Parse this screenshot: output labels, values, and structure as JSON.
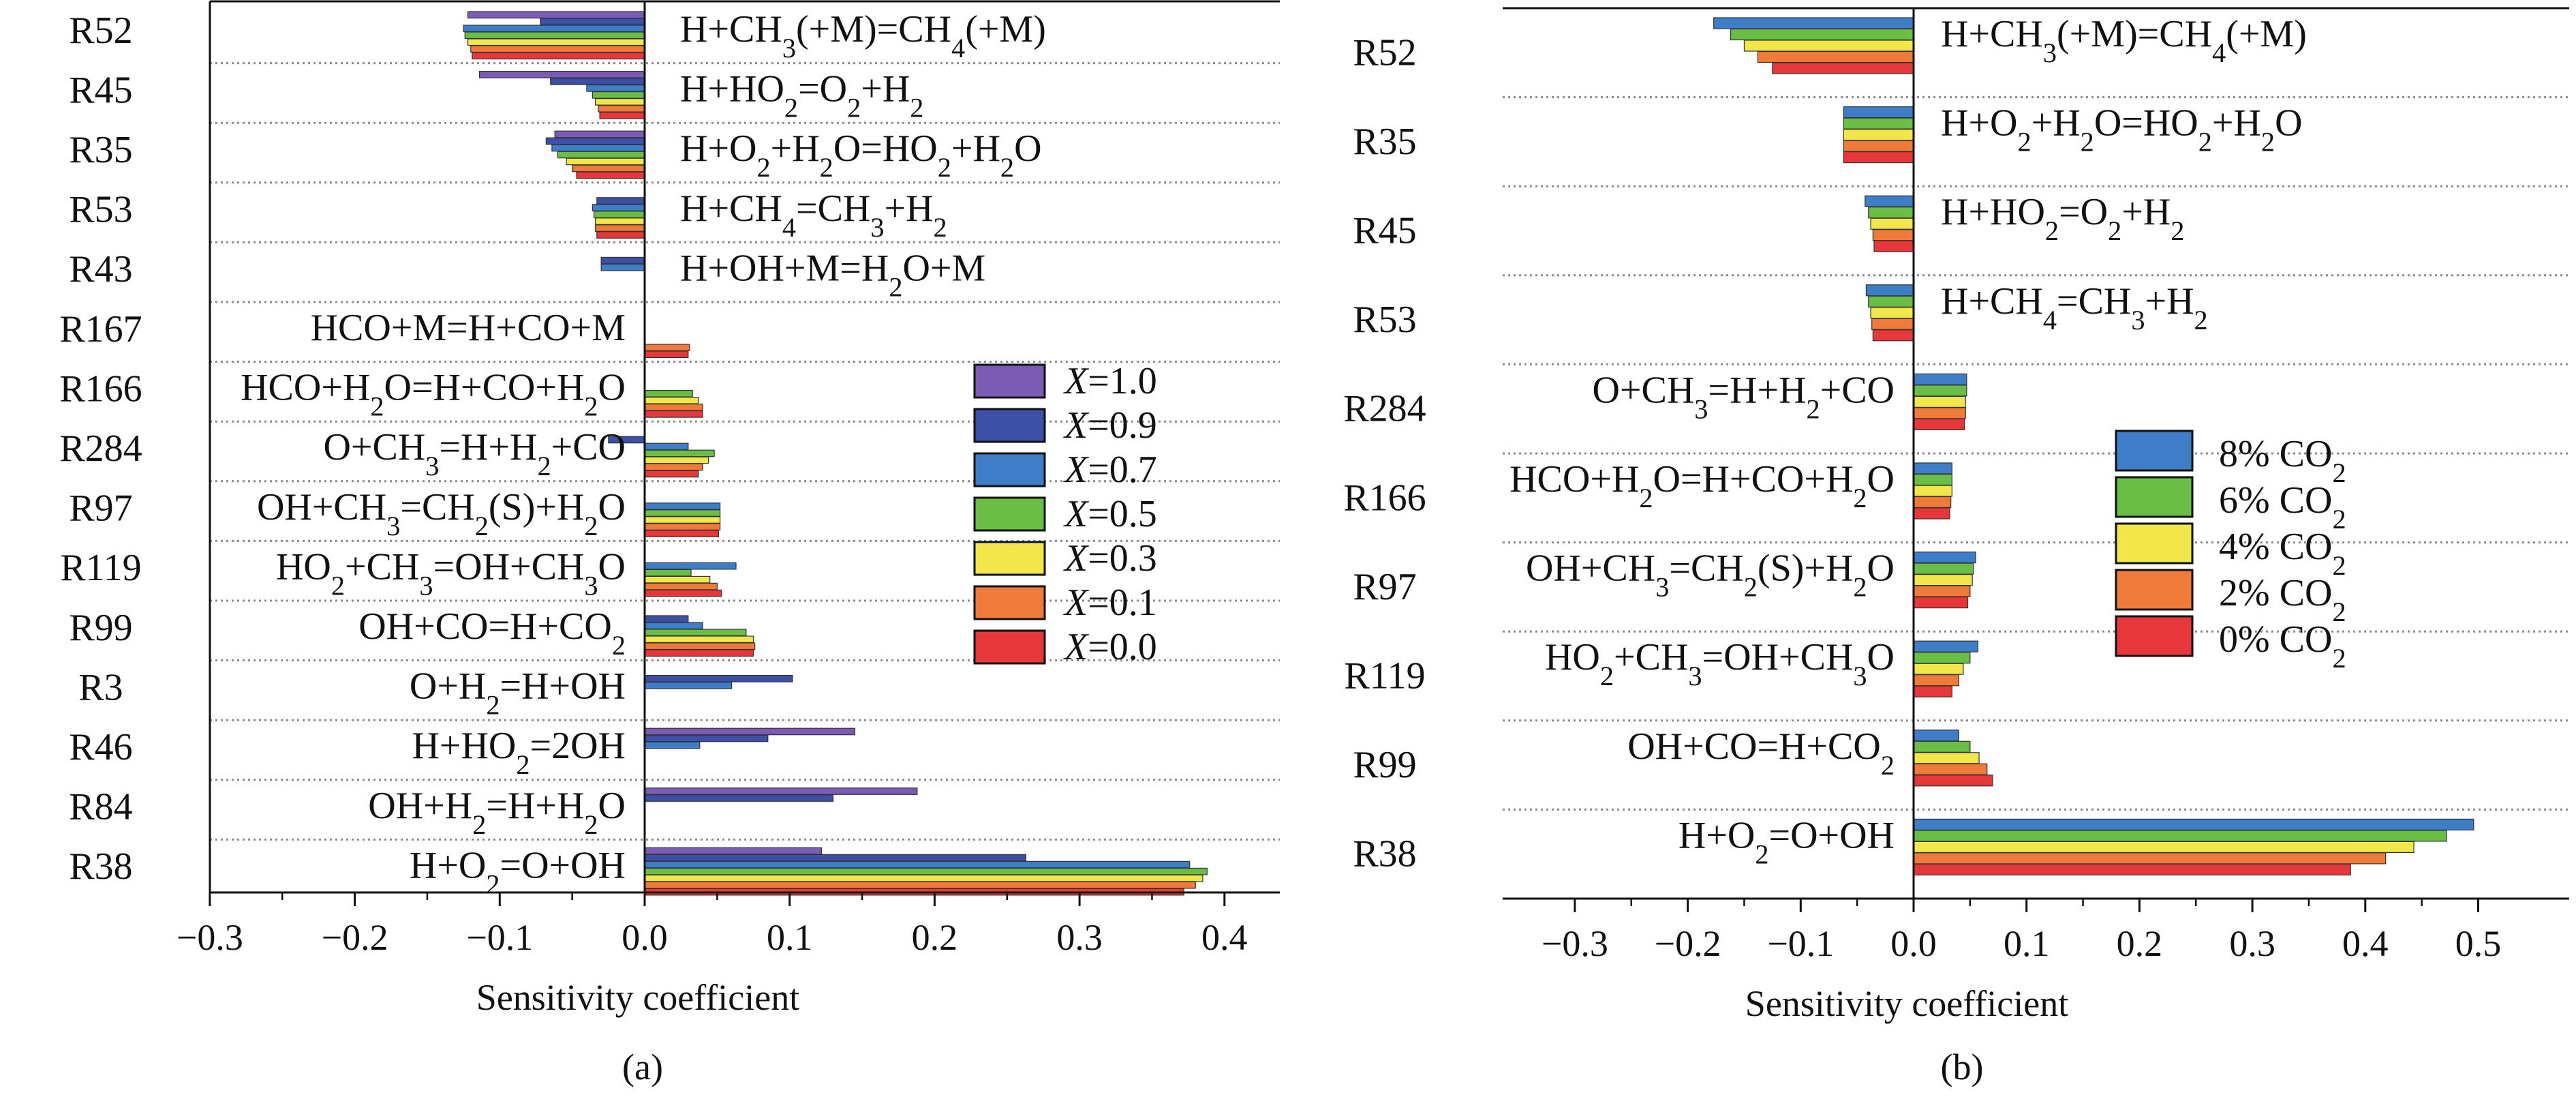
{
  "chart_data": [
    {
      "type": "bar",
      "orientation": "horizontal",
      "caption": "(a)",
      "xlabel": "Sensitivity coefficient",
      "ylabel": "",
      "xlim": [
        -0.3,
        0.44
      ],
      "xticks": [
        -0.3,
        -0.2,
        -0.1,
        0.0,
        0.1,
        0.2,
        0.3,
        0.4
      ],
      "xtick_labels": [
        "−0.3",
        "−0.2",
        "−0.1",
        "0.0",
        "0.1",
        "0.2",
        "0.3",
        "0.4"
      ],
      "grid": "dotted separators between reactions",
      "legend_position": "center-right",
      "categories": [
        "R52",
        "R45",
        "R35",
        "R53",
        "R43",
        "R167",
        "R166",
        "R284",
        "R97",
        "R119",
        "R99",
        "R3",
        "R46",
        "R84",
        "R38"
      ],
      "reactions": [
        [
          {
            "t": "H+CH"
          },
          {
            "t": "3",
            "s": "sub"
          },
          {
            "t": "(+M)=CH"
          },
          {
            "t": "4",
            "s": "sub"
          },
          {
            "t": "(+M)"
          }
        ],
        [
          {
            "t": "H+HO"
          },
          {
            "t": "2",
            "s": "sub"
          },
          {
            "t": "=O"
          },
          {
            "t": "2",
            "s": "sub"
          },
          {
            "t": "+H"
          },
          {
            "t": "2",
            "s": "sub"
          }
        ],
        [
          {
            "t": "H+O"
          },
          {
            "t": "2",
            "s": "sub"
          },
          {
            "t": "+H"
          },
          {
            "t": "2",
            "s": "sub"
          },
          {
            "t": "O=HO"
          },
          {
            "t": "2",
            "s": "sub"
          },
          {
            "t": "+H"
          },
          {
            "t": "2",
            "s": "sub"
          },
          {
            "t": "O"
          }
        ],
        [
          {
            "t": "H+CH"
          },
          {
            "t": "4",
            "s": "sub"
          },
          {
            "t": "=CH"
          },
          {
            "t": "3",
            "s": "sub"
          },
          {
            "t": "+H"
          },
          {
            "t": "2",
            "s": "sub"
          }
        ],
        [
          {
            "t": "H+OH+M=H"
          },
          {
            "t": "2",
            "s": "sub"
          },
          {
            "t": "O+M"
          }
        ],
        [
          {
            "t": "HCO+M=H+CO+M"
          }
        ],
        [
          {
            "t": "HCO+H"
          },
          {
            "t": "2",
            "s": "sub"
          },
          {
            "t": "O=H+CO+H"
          },
          {
            "t": "2",
            "s": "sub"
          },
          {
            "t": "O"
          }
        ],
        [
          {
            "t": "O+CH"
          },
          {
            "t": "3",
            "s": "sub"
          },
          {
            "t": "=H+H"
          },
          {
            "t": "2",
            "s": "sub"
          },
          {
            "t": "+CO"
          }
        ],
        [
          {
            "t": "OH+CH"
          },
          {
            "t": "3",
            "s": "sub"
          },
          {
            "t": "=CH"
          },
          {
            "t": "2",
            "s": "sub"
          },
          {
            "t": "(S)+H"
          },
          {
            "t": "2",
            "s": "sub"
          },
          {
            "t": "O"
          }
        ],
        [
          {
            "t": "HO"
          },
          {
            "t": "2",
            "s": "sub"
          },
          {
            "t": "+CH"
          },
          {
            "t": "3",
            "s": "sub"
          },
          {
            "t": "=OH+CH"
          },
          {
            "t": "3",
            "s": "sub"
          },
          {
            "t": "O"
          }
        ],
        [
          {
            "t": "OH+CO=H+CO"
          },
          {
            "t": "2",
            "s": "sub"
          }
        ],
        [
          {
            "t": "O+H"
          },
          {
            "t": "2",
            "s": "sub"
          },
          {
            "t": "=H+OH"
          }
        ],
        [
          {
            "t": "H+HO"
          },
          {
            "t": "2",
            "s": "sub"
          },
          {
            "t": "=2OH"
          }
        ],
        [
          {
            "t": "OH+H"
          },
          {
            "t": "2",
            "s": "sub"
          },
          {
            "t": "=H+H"
          },
          {
            "t": "2",
            "s": "sub"
          },
          {
            "t": "O"
          }
        ],
        [
          {
            "t": "H+O"
          },
          {
            "t": "2",
            "s": "sub"
          },
          {
            "t": "=O+OH"
          }
        ]
      ],
      "series": [
        {
          "name": [
            {
              "t": "X",
              "s": "it"
            },
            {
              "t": "=1.0"
            }
          ],
          "color": "#7B5BB5",
          "values": [
            -0.122,
            -0.114,
            -0.062,
            0,
            0,
            0,
            0,
            0,
            0,
            0,
            0,
            0,
            0.145,
            0.188,
            0.122
          ]
        },
        {
          "name": [
            {
              "t": "X",
              "s": "it"
            },
            {
              "t": "=0.9"
            }
          ],
          "color": "#3D4FA6",
          "values": [
            -0.072,
            -0.065,
            -0.068,
            -0.033,
            -0.03,
            0,
            0,
            -0.025,
            0,
            0,
            0.03,
            0.102,
            0.085,
            0.13,
            0.263
          ]
        },
        {
          "name": [
            {
              "t": "X",
              "s": "it"
            },
            {
              "t": "=0.7"
            }
          ],
          "color": "#3E7DC7",
          "values": [
            -0.125,
            -0.04,
            -0.064,
            -0.036,
            -0.03,
            0,
            0,
            0.03,
            0.052,
            0.063,
            0.04,
            0.06,
            0.038,
            0,
            0.376
          ]
        },
        {
          "name": [
            {
              "t": "X",
              "s": "it"
            },
            {
              "t": "=0.5"
            }
          ],
          "color": "#6BBE45",
          "values": [
            -0.124,
            -0.036,
            -0.06,
            -0.035,
            0,
            0,
            0.033,
            0.048,
            0.052,
            0.032,
            0.07,
            0,
            0,
            0,
            0.388
          ]
        },
        {
          "name": [
            {
              "t": "X",
              "s": "it"
            },
            {
              "t": "=0.3"
            }
          ],
          "color": "#F1E64A",
          "values": [
            -0.122,
            -0.034,
            -0.054,
            -0.034,
            0,
            0,
            0.037,
            0.044,
            0.052,
            0.045,
            0.075,
            0,
            0,
            0,
            0.385
          ]
        },
        {
          "name": [
            {
              "t": "X",
              "s": "it"
            },
            {
              "t": "=0.1"
            }
          ],
          "color": "#F07A3A",
          "values": [
            -0.12,
            -0.032,
            -0.05,
            -0.034,
            0,
            0.031,
            0.04,
            0.04,
            0.052,
            0.05,
            0.076,
            0,
            0,
            0,
            0.38
          ]
        },
        {
          "name": [
            {
              "t": "X",
              "s": "it"
            },
            {
              "t": "=0.0"
            }
          ],
          "color": "#E8373A",
          "values": [
            -0.119,
            -0.031,
            -0.047,
            -0.033,
            0,
            0.03,
            0.04,
            0.037,
            0.051,
            0.053,
            0.075,
            0,
            0,
            0,
            0.372
          ]
        }
      ]
    },
    {
      "type": "bar",
      "orientation": "horizontal",
      "caption": "(b)",
      "xlabel": "Sensitivity coefficient",
      "ylabel": "",
      "xlim": [
        -0.34,
        0.58
      ],
      "xticks": [
        -0.3,
        -0.2,
        -0.1,
        0.0,
        0.1,
        0.2,
        0.3,
        0.4,
        0.5
      ],
      "xtick_labels": [
        "−0.3",
        "−0.2",
        "−0.1",
        "0.0",
        "0.1",
        "0.2",
        "0.3",
        "0.4",
        "0.5"
      ],
      "grid": "dotted separators between reactions",
      "legend_position": "center-right",
      "categories": [
        "R52",
        "R35",
        "R45",
        "R53",
        "R284",
        "R166",
        "R97",
        "R119",
        "R99",
        "R38"
      ],
      "reactions": [
        [
          {
            "t": "H+CH"
          },
          {
            "t": "3",
            "s": "sub"
          },
          {
            "t": "(+M)=CH"
          },
          {
            "t": "4",
            "s": "sub"
          },
          {
            "t": "(+M)"
          }
        ],
        [
          {
            "t": "H+O"
          },
          {
            "t": "2",
            "s": "sub"
          },
          {
            "t": "+H"
          },
          {
            "t": "2",
            "s": "sub"
          },
          {
            "t": "O=HO"
          },
          {
            "t": "2",
            "s": "sub"
          },
          {
            "t": "+H"
          },
          {
            "t": "2",
            "s": "sub"
          },
          {
            "t": "O"
          }
        ],
        [
          {
            "t": "H+HO"
          },
          {
            "t": "2",
            "s": "sub"
          },
          {
            "t": "=O"
          },
          {
            "t": "2",
            "s": "sub"
          },
          {
            "t": "+H"
          },
          {
            "t": "2",
            "s": "sub"
          }
        ],
        [
          {
            "t": "H+CH"
          },
          {
            "t": "4",
            "s": "sub"
          },
          {
            "t": "=CH"
          },
          {
            "t": "3",
            "s": "sub"
          },
          {
            "t": "+H"
          },
          {
            "t": "2",
            "s": "sub"
          }
        ],
        [
          {
            "t": "O+CH"
          },
          {
            "t": "3",
            "s": "sub"
          },
          {
            "t": "=H+H"
          },
          {
            "t": "2",
            "s": "sub"
          },
          {
            "t": "+CO"
          }
        ],
        [
          {
            "t": "HCO+H"
          },
          {
            "t": "2",
            "s": "sub"
          },
          {
            "t": "O=H+CO+H"
          },
          {
            "t": "2",
            "s": "sub"
          },
          {
            "t": "O"
          }
        ],
        [
          {
            "t": "OH+CH"
          },
          {
            "t": "3",
            "s": "sub"
          },
          {
            "t": "=CH"
          },
          {
            "t": "2",
            "s": "sub"
          },
          {
            "t": "(S)+H"
          },
          {
            "t": "2",
            "s": "sub"
          },
          {
            "t": "O"
          }
        ],
        [
          {
            "t": "HO"
          },
          {
            "t": "2",
            "s": "sub"
          },
          {
            "t": "+CH"
          },
          {
            "t": "3",
            "s": "sub"
          },
          {
            "t": "=OH+CH"
          },
          {
            "t": "3",
            "s": "sub"
          },
          {
            "t": "O"
          }
        ],
        [
          {
            "t": "OH+CO=H+CO"
          },
          {
            "t": "2",
            "s": "sub"
          }
        ],
        [
          {
            "t": "H+O"
          },
          {
            "t": "2",
            "s": "sub"
          },
          {
            "t": "=O+OH"
          }
        ]
      ],
      "series": [
        {
          "name": [
            {
              "t": "8% CO"
            },
            {
              "t": "2",
              "s": "sub"
            }
          ],
          "color": "#3E7DC7",
          "values": [
            -0.177,
            -0.062,
            -0.043,
            -0.042,
            0.047,
            0.034,
            0.055,
            0.057,
            0.04,
            0.496
          ]
        },
        {
          "name": [
            {
              "t": "6% CO"
            },
            {
              "t": "2",
              "s": "sub"
            }
          ],
          "color": "#6BBE45",
          "values": [
            -0.162,
            -0.062,
            -0.04,
            -0.04,
            0.047,
            0.034,
            0.053,
            0.05,
            0.05,
            0.472
          ]
        },
        {
          "name": [
            {
              "t": "4% CO"
            },
            {
              "t": "2",
              "s": "sub"
            }
          ],
          "color": "#F1E64A",
          "values": [
            -0.15,
            -0.062,
            -0.038,
            -0.038,
            0.046,
            0.034,
            0.052,
            0.044,
            0.058,
            0.443
          ]
        },
        {
          "name": [
            {
              "t": "2% CO"
            },
            {
              "t": "2",
              "s": "sub"
            }
          ],
          "color": "#F07A3A",
          "values": [
            -0.138,
            -0.062,
            -0.036,
            -0.037,
            0.046,
            0.033,
            0.05,
            0.04,
            0.065,
            0.418
          ]
        },
        {
          "name": [
            {
              "t": "0% CO"
            },
            {
              "t": "2",
              "s": "sub"
            }
          ],
          "color": "#E8373A",
          "values": [
            -0.125,
            -0.062,
            -0.035,
            -0.036,
            0.045,
            0.032,
            0.048,
            0.034,
            0.07,
            0.387
          ]
        }
      ]
    }
  ]
}
